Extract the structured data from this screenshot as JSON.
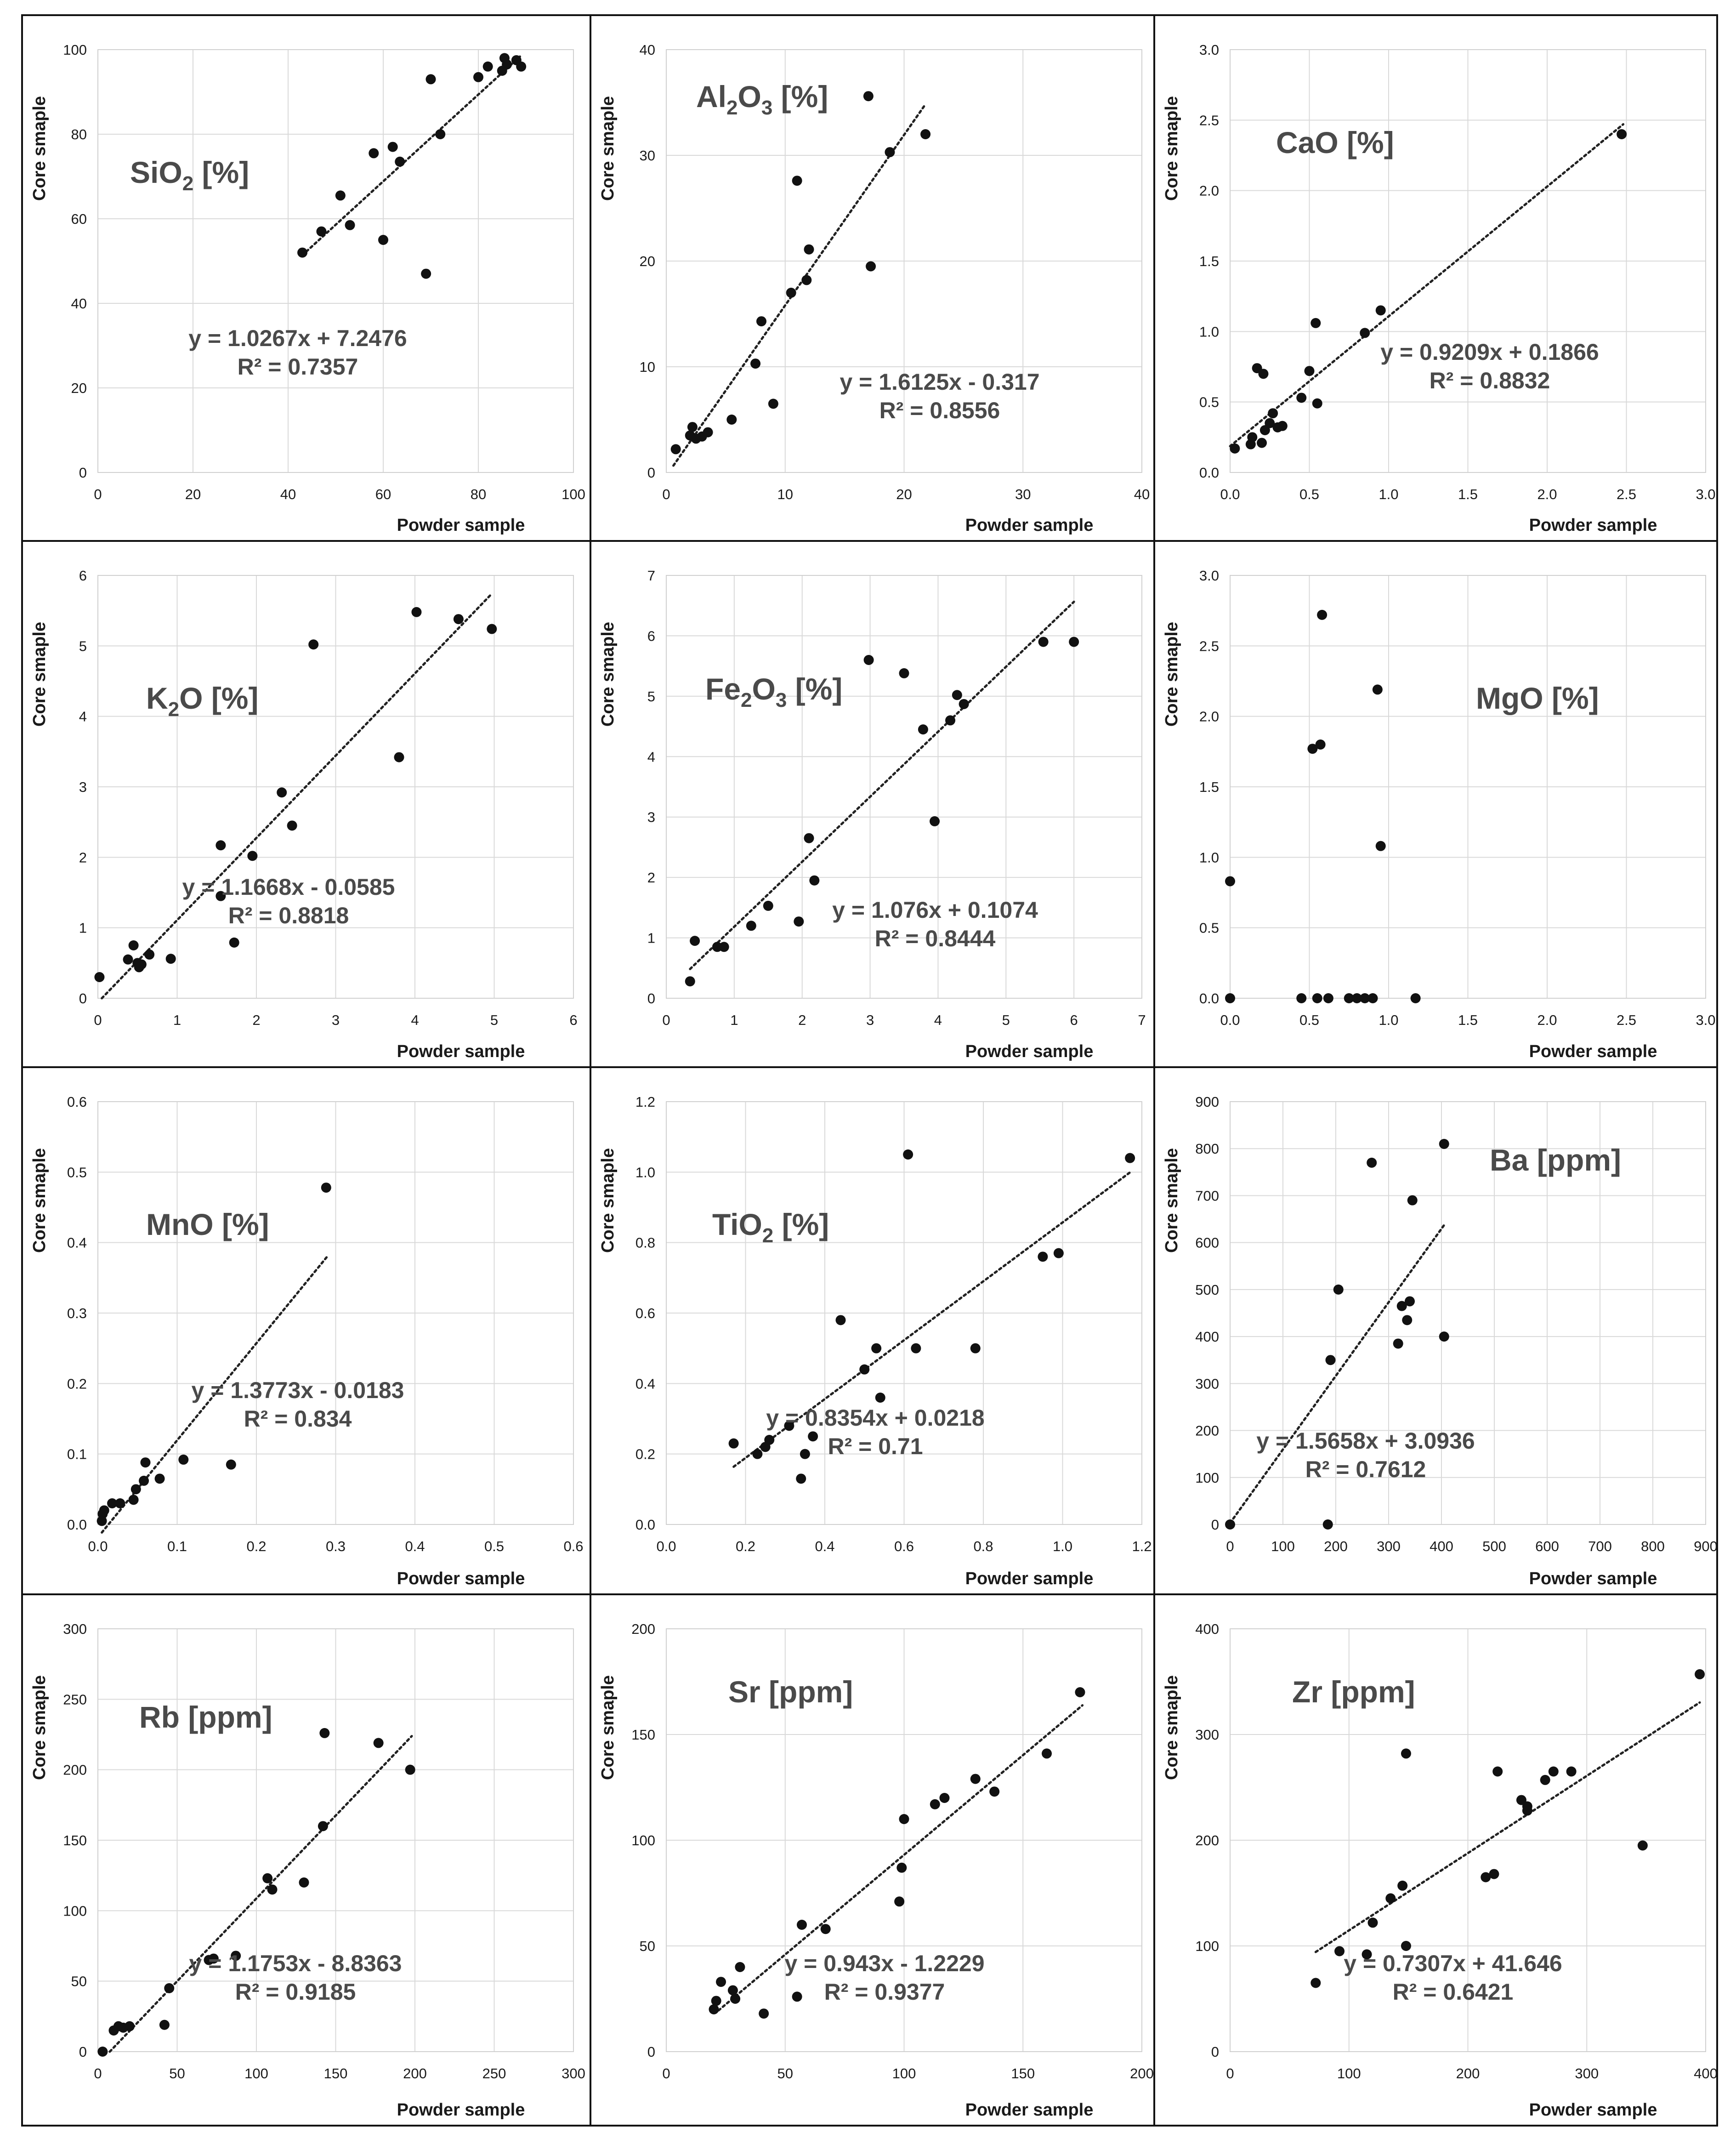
{
  "chart_data": [
    {
      "type": "scatter",
      "title": "SiO",
      "title_sub": "2",
      "title_unit": " [%]",
      "xlabel": "Powder sample",
      "ylabel": "Core smaple",
      "xlim": [
        0,
        100
      ],
      "ylim": [
        0,
        100
      ],
      "xticks": [
        0,
        20,
        40,
        60,
        80,
        100
      ],
      "yticks": [
        0,
        20,
        40,
        60,
        80,
        100
      ],
      "tick_format": "int",
      "trendline": {
        "slope": 1.0267,
        "intercept": 7.2476,
        "x_range": [
          43,
          89
        ]
      },
      "equation": "y = 1.0267x + 7.2476",
      "r2": "R² = 0.7357",
      "points": [
        [
          43,
          52
        ],
        [
          47,
          57
        ],
        [
          51,
          65.5
        ],
        [
          53,
          58.5
        ],
        [
          58,
          75.5
        ],
        [
          60,
          55
        ],
        [
          62,
          77
        ],
        [
          63.5,
          73.5
        ],
        [
          69,
          47
        ],
        [
          70,
          93
        ],
        [
          72,
          80
        ],
        [
          80,
          93.5
        ],
        [
          82,
          96
        ],
        [
          85,
          95
        ],
        [
          85.5,
          98
        ],
        [
          86,
          96.5
        ],
        [
          88,
          97.5
        ],
        [
          89,
          96
        ]
      ]
    },
    {
      "type": "scatter",
      "title": "Al",
      "title_sub": "2",
      "title_mid": "O",
      "title_sub2": "3",
      "title_unit": " [%]",
      "xlabel": "Powder sample",
      "ylabel": "Core smaple",
      "xlim": [
        0,
        40
      ],
      "ylim": [
        0,
        40
      ],
      "xticks": [
        0,
        10,
        20,
        30,
        40
      ],
      "yticks": [
        0,
        10,
        20,
        30,
        40
      ],
      "tick_format": "int",
      "trendline": {
        "slope": 1.6125,
        "intercept": -0.317,
        "x_range": [
          0.6,
          21.8
        ]
      },
      "equation": "y = 1.6125x - 0.317",
      "r2": "R² = 0.8556",
      "points": [
        [
          0.8,
          2.2
        ],
        [
          2,
          3.5
        ],
        [
          2.2,
          4.3
        ],
        [
          2.5,
          3.2
        ],
        [
          3,
          3.4
        ],
        [
          3.5,
          3.8
        ],
        [
          5.5,
          5
        ],
        [
          7.5,
          10.3
        ],
        [
          8,
          14.3
        ],
        [
          9,
          6.5
        ],
        [
          10.5,
          17
        ],
        [
          11,
          27.6
        ],
        [
          11.8,
          18.2
        ],
        [
          12,
          21.1
        ],
        [
          17,
          35.6
        ],
        [
          17.2,
          19.5
        ],
        [
          18.8,
          30.3
        ],
        [
          21.8,
          32
        ]
      ]
    },
    {
      "type": "scatter",
      "title": "CaO [%]",
      "xlabel": "Powder sample",
      "ylabel": "Core smaple",
      "xlim": [
        0,
        3
      ],
      "ylim": [
        0,
        3
      ],
      "xticks": [
        0,
        0.5,
        1,
        1.5,
        2,
        2.5,
        3
      ],
      "yticks": [
        0,
        0.5,
        1,
        1.5,
        2,
        2.5,
        3
      ],
      "tick_format": "1dp",
      "trendline": {
        "slope": 0.9209,
        "intercept": 0.1866,
        "x_range": [
          0,
          2.48
        ]
      },
      "equation": "y = 0.9209x + 0.1866",
      "r2": "R² = 0.8832",
      "points": [
        [
          0.03,
          0.17
        ],
        [
          0.13,
          0.2
        ],
        [
          0.14,
          0.25
        ],
        [
          0.17,
          0.74
        ],
        [
          0.2,
          0.21
        ],
        [
          0.21,
          0.7
        ],
        [
          0.22,
          0.3
        ],
        [
          0.25,
          0.35
        ],
        [
          0.27,
          0.42
        ],
        [
          0.3,
          0.32
        ],
        [
          0.33,
          0.33
        ],
        [
          0.45,
          0.53
        ],
        [
          0.5,
          0.72
        ],
        [
          0.54,
          1.06
        ],
        [
          0.55,
          0.49
        ],
        [
          0.85,
          0.99
        ],
        [
          0.95,
          1.15
        ],
        [
          2.47,
          2.4
        ]
      ]
    },
    {
      "type": "scatter",
      "title": "K",
      "title_sub": "2",
      "title_mid": "O [%]",
      "xlabel": "Powder sample",
      "ylabel": "Core smaple",
      "xlim": [
        0,
        6
      ],
      "ylim": [
        0,
        6
      ],
      "xticks": [
        0,
        1,
        2,
        3,
        4,
        5,
        6
      ],
      "yticks": [
        0,
        1,
        2,
        3,
        4,
        5,
        6
      ],
      "tick_format": "int",
      "trendline": {
        "slope": 1.1668,
        "intercept": -0.0585,
        "x_range": [
          0.05,
          4.95
        ]
      },
      "equation": "y = 1.1668x - 0.0585",
      "r2": "R² = 0.8818",
      "points": [
        [
          0.02,
          0.3
        ],
        [
          0.38,
          0.55
        ],
        [
          0.45,
          0.75
        ],
        [
          0.5,
          0.5
        ],
        [
          0.52,
          0.44
        ],
        [
          0.55,
          0.48
        ],
        [
          0.65,
          0.62
        ],
        [
          0.92,
          0.56
        ],
        [
          1.55,
          2.17
        ],
        [
          1.55,
          1.45
        ],
        [
          1.72,
          0.79
        ],
        [
          1.95,
          2.02
        ],
        [
          2.32,
          2.92
        ],
        [
          2.45,
          2.45
        ],
        [
          2.72,
          5.02
        ],
        [
          3.8,
          3.42
        ],
        [
          4.02,
          5.48
        ],
        [
          4.55,
          5.38
        ],
        [
          4.97,
          5.24
        ]
      ]
    },
    {
      "type": "scatter",
      "title": "Fe",
      "title_sub": "2",
      "title_mid": "O",
      "title_sub2": "3",
      "title_unit": " [%]",
      "xlabel": "Powder sample",
      "ylabel": "Core smaple",
      "xlim": [
        0,
        7
      ],
      "ylim": [
        0,
        7
      ],
      "xticks": [
        0,
        1,
        2,
        3,
        4,
        5,
        6,
        7
      ],
      "yticks": [
        0,
        1,
        2,
        3,
        4,
        5,
        6,
        7
      ],
      "tick_format": "int",
      "trendline": {
        "slope": 1.076,
        "intercept": 0.1074,
        "x_range": [
          0.35,
          6
        ]
      },
      "equation": "y = 1.076x + 0.1074",
      "r2": "R² = 0.8444",
      "points": [
        [
          0.35,
          0.28
        ],
        [
          0.42,
          0.95
        ],
        [
          0.75,
          0.85
        ],
        [
          0.85,
          0.85
        ],
        [
          1.25,
          1.2
        ],
        [
          1.5,
          1.53
        ],
        [
          1.95,
          1.27
        ],
        [
          2.1,
          2.65
        ],
        [
          2.18,
          1.95
        ],
        [
          2.98,
          5.6
        ],
        [
          3.5,
          5.38
        ],
        [
          3.78,
          4.45
        ],
        [
          3.95,
          2.93
        ],
        [
          4.18,
          4.6
        ],
        [
          4.28,
          5.02
        ],
        [
          4.38,
          4.87
        ],
        [
          5.55,
          5.9
        ],
        [
          6,
          5.9
        ]
      ]
    },
    {
      "type": "scatter",
      "title": "MgO [%]",
      "xlabel": "Powder sample",
      "ylabel": "Core smaple",
      "xlim": [
        0,
        3
      ],
      "ylim": [
        0,
        3
      ],
      "xticks": [
        0,
        0.5,
        1,
        1.5,
        2,
        2.5,
        3
      ],
      "yticks": [
        0,
        0.5,
        1,
        1.5,
        2,
        2.5,
        3
      ],
      "tick_format": "1dp",
      "equation": "",
      "r2": "",
      "points": [
        [
          0,
          0.83
        ],
        [
          0,
          0
        ],
        [
          0.45,
          0
        ],
        [
          0.52,
          1.77
        ],
        [
          0.55,
          0
        ],
        [
          0.57,
          1.8
        ],
        [
          0.58,
          2.72
        ],
        [
          0.62,
          0
        ],
        [
          0.75,
          0
        ],
        [
          0.8,
          0
        ],
        [
          0.85,
          0
        ],
        [
          0.9,
          0
        ],
        [
          0.93,
          2.19
        ],
        [
          0.95,
          1.08
        ],
        [
          1.17,
          0
        ]
      ]
    },
    {
      "type": "scatter",
      "title": "MnO [%]",
      "xlabel": "Powder sample",
      "ylabel": "Core smaple",
      "xlim": [
        0,
        0.6
      ],
      "ylim": [
        0,
        0.6
      ],
      "xticks": [
        0,
        0.1,
        0.2,
        0.3,
        0.4,
        0.5,
        0.6
      ],
      "yticks": [
        0,
        0.1,
        0.2,
        0.3,
        0.4,
        0.5,
        0.6
      ],
      "tick_format": "1dp",
      "trendline": {
        "slope": 1.3773,
        "intercept": -0.0183,
        "x_range": [
          0.005,
          0.29
        ]
      },
      "equation": "y = 1.3773x - 0.0183",
      "r2": "R² = 0.834",
      "points": [
        [
          0.005,
          0.005
        ],
        [
          0.006,
          0.015
        ],
        [
          0.008,
          0.02
        ],
        [
          0.018,
          0.03
        ],
        [
          0.028,
          0.03
        ],
        [
          0.045,
          0.035
        ],
        [
          0.048,
          0.05
        ],
        [
          0.058,
          0.062
        ],
        [
          0.06,
          0.088
        ],
        [
          0.078,
          0.065
        ],
        [
          0.108,
          0.092
        ],
        [
          0.168,
          0.085
        ],
        [
          0.288,
          0.478
        ]
      ]
    },
    {
      "type": "scatter",
      "title": "TiO",
      "title_sub": "2",
      "title_unit": " [%]",
      "xlabel": "Powder sample",
      "ylabel": "Core smaple",
      "xlim": [
        0,
        1.2
      ],
      "ylim": [
        0,
        1.2
      ],
      "xticks": [
        0,
        0.2,
        0.4,
        0.6,
        0.8,
        1,
        1.2
      ],
      "yticks": [
        0,
        0.2,
        0.4,
        0.6,
        0.8,
        1,
        1.2
      ],
      "tick_format": "1dp",
      "trendline": {
        "slope": 0.8354,
        "intercept": 0.0218,
        "x_range": [
          0.17,
          1.17
        ]
      },
      "equation": "y = 0.8354x + 0.0218",
      "r2": "R² = 0.71",
      "points": [
        [
          0.17,
          0.23
        ],
        [
          0.23,
          0.2
        ],
        [
          0.25,
          0.22
        ],
        [
          0.26,
          0.24
        ],
        [
          0.31,
          0.28
        ],
        [
          0.34,
          0.13
        ],
        [
          0.35,
          0.2
        ],
        [
          0.37,
          0.25
        ],
        [
          0.44,
          0.58
        ],
        [
          0.5,
          0.44
        ],
        [
          0.53,
          0.5
        ],
        [
          0.54,
          0.36
        ],
        [
          0.61,
          1.05
        ],
        [
          0.63,
          0.5
        ],
        [
          0.78,
          0.5
        ],
        [
          0.95,
          0.76
        ],
        [
          0.99,
          0.77
        ],
        [
          1.17,
          1.04
        ]
      ]
    },
    {
      "type": "scatter",
      "title": "Ba [ppm]",
      "xlabel": "Powder sample",
      "ylabel": "Core smaple",
      "xlim": [
        0,
        900
      ],
      "ylim": [
        0,
        900
      ],
      "xticks": [
        0,
        100,
        200,
        300,
        400,
        500,
        600,
        700,
        800,
        900
      ],
      "yticks": [
        0,
        100,
        200,
        300,
        400,
        500,
        600,
        700,
        800,
        900
      ],
      "tick_format": "int",
      "trendline": {
        "slope": 1.5658,
        "intercept": 3.0936,
        "x_range": [
          0,
          405
        ]
      },
      "equation": "y = 1.5658x + 3.0936",
      "r2": "R² = 0.7612",
      "points": [
        [
          0,
          0
        ],
        [
          185,
          0
        ],
        [
          190,
          350
        ],
        [
          205,
          500
        ],
        [
          268,
          770
        ],
        [
          318,
          385
        ],
        [
          325,
          465
        ],
        [
          335,
          435
        ],
        [
          340,
          475
        ],
        [
          345,
          690
        ],
        [
          405,
          400
        ],
        [
          405,
          810
        ]
      ]
    },
    {
      "type": "scatter",
      "title": "Rb [ppm]",
      "xlabel": "Powder sample",
      "ylabel": "Core smaple",
      "xlim": [
        0,
        300
      ],
      "ylim": [
        0,
        300
      ],
      "xticks": [
        0,
        50,
        100,
        150,
        200,
        250,
        300
      ],
      "yticks": [
        0,
        50,
        100,
        150,
        200,
        250,
        300
      ],
      "tick_format": "int",
      "trendline": {
        "slope": 1.1753,
        "intercept": -8.8363,
        "x_range": [
          7.5,
          198
        ]
      },
      "equation": "y = 1.1753x - 8.8363",
      "r2": "R² = 0.9185",
      "points": [
        [
          3,
          0
        ],
        [
          10,
          15
        ],
        [
          13,
          18
        ],
        [
          16,
          17
        ],
        [
          20,
          18
        ],
        [
          42,
          19
        ],
        [
          45,
          45
        ],
        [
          70,
          65
        ],
        [
          73,
          66
        ],
        [
          87,
          68
        ],
        [
          107,
          123
        ],
        [
          110,
          115
        ],
        [
          130,
          120
        ],
        [
          142,
          160
        ],
        [
          143,
          226
        ],
        [
          177,
          219
        ],
        [
          197,
          200
        ]
      ]
    },
    {
      "type": "scatter",
      "title": "Sr [ppm]",
      "xlabel": "Powder sample",
      "ylabel": "Core smaple",
      "xlim": [
        0,
        200
      ],
      "ylim": [
        0,
        200
      ],
      "xticks": [
        0,
        50,
        100,
        150,
        200
      ],
      "yticks": [
        0,
        50,
        100,
        150,
        200
      ],
      "tick_format": "int",
      "trendline": {
        "slope": 0.943,
        "intercept": -1.2229,
        "x_range": [
          22,
          175
        ]
      },
      "equation": "y = 0.943x - 1.2229",
      "r2": "R² = 0.9377",
      "points": [
        [
          20,
          20
        ],
        [
          21,
          24
        ],
        [
          23,
          33
        ],
        [
          28,
          29
        ],
        [
          29,
          25
        ],
        [
          31,
          40
        ],
        [
          41,
          18
        ],
        [
          55,
          26
        ],
        [
          57,
          60
        ],
        [
          67,
          58
        ],
        [
          98,
          71
        ],
        [
          99,
          87
        ],
        [
          100,
          110
        ],
        [
          113,
          117
        ],
        [
          117,
          120
        ],
        [
          130,
          129
        ],
        [
          138,
          123
        ],
        [
          160,
          141
        ],
        [
          174,
          170
        ]
      ]
    },
    {
      "type": "scatter",
      "title": "Zr [ppm]",
      "xlabel": "Powder sample",
      "ylabel": "Core smaple",
      "xlim": [
        0,
        400
      ],
      "ylim": [
        0,
        400
      ],
      "xticks": [
        0,
        100,
        200,
        300,
        400
      ],
      "yticks": [
        0,
        100,
        200,
        300,
        400
      ],
      "tick_format": "int",
      "trendline": {
        "slope": 0.7307,
        "intercept": 41.646,
        "x_range": [
          72,
          395
        ]
      },
      "equation": "y = 0.7307x + 41.646",
      "r2": "R² = 0.6421",
      "points": [
        [
          72,
          65
        ],
        [
          92,
          95
        ],
        [
          115,
          92
        ],
        [
          120,
          122
        ],
        [
          135,
          145
        ],
        [
          145,
          157
        ],
        [
          148,
          100
        ],
        [
          148,
          282
        ],
        [
          215,
          165
        ],
        [
          222,
          168
        ],
        [
          225,
          265
        ],
        [
          245,
          238
        ],
        [
          250,
          232
        ],
        [
          250,
          228
        ],
        [
          265,
          257
        ],
        [
          272,
          265
        ],
        [
          287,
          265
        ],
        [
          347,
          195
        ],
        [
          395,
          357
        ]
      ]
    }
  ]
}
